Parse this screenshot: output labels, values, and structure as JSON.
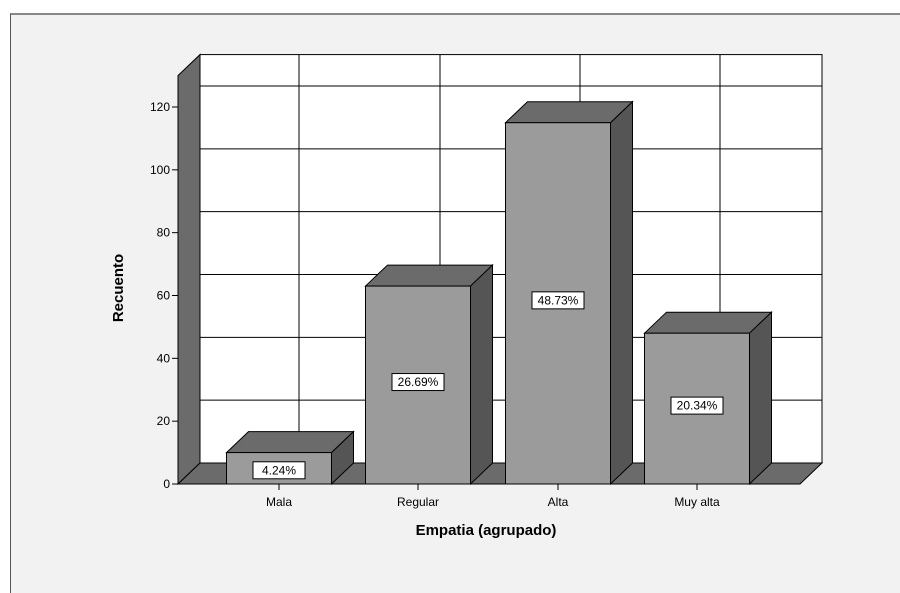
{
  "chart_data": {
    "type": "bar",
    "categories": [
      "Mala",
      "Regular",
      "Alta",
      "Muy alta"
    ],
    "values": [
      10,
      63,
      115,
      48
    ],
    "percent_labels": [
      "4.24%",
      "26.69%",
      "48.73%",
      "20.34%"
    ],
    "title": "",
    "xlabel": "Empatia (agrupado)",
    "ylabel": "Recuento",
    "ylim": [
      0,
      130
    ],
    "yticks": [
      0,
      20,
      40,
      60,
      80,
      100,
      120
    ],
    "grid": true,
    "style": "3d",
    "colors": {
      "bar_front": "#9b9b9b",
      "bar_top": "#6b6b6b",
      "bar_side": "#555555",
      "plot_bg": "#ffffff",
      "panel_bg": "#f2f2f2",
      "wall": "#6b6b6b"
    }
  }
}
